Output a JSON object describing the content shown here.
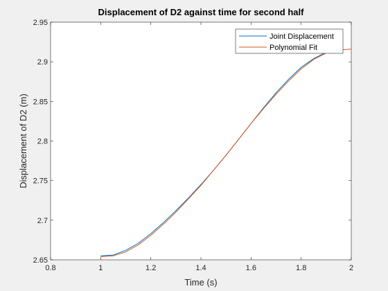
{
  "chart_data": {
    "type": "line",
    "title": "Displacement of D2 against time for second half",
    "xlabel": "Time (s)",
    "ylabel": "Displacement of D2 (m)",
    "xlim": [
      0.8,
      2.0
    ],
    "ylim": [
      2.65,
      2.95
    ],
    "xticks": [
      0.8,
      1.0,
      1.2,
      1.4,
      1.6,
      1.8,
      2.0
    ],
    "xtick_labels": [
      "0.8",
      "1",
      "1.2",
      "1.4",
      "1.6",
      "1.8",
      "2"
    ],
    "yticks": [
      2.65,
      2.7,
      2.75,
      2.8,
      2.85,
      2.9,
      2.95
    ],
    "ytick_labels": [
      "2.65",
      "2.7",
      "2.75",
      "2.8",
      "2.85",
      "2.9",
      "2.95"
    ],
    "grid": false,
    "legend_position": "top-right",
    "series": [
      {
        "name": "Joint Displacement",
        "color": "#0072bd",
        "x": [
          1.0,
          1.05,
          1.1,
          1.15,
          1.2,
          1.25,
          1.3,
          1.35,
          1.4,
          1.45,
          1.5,
          1.55,
          1.6,
          1.65,
          1.7,
          1.75,
          1.8,
          1.85,
          1.9,
          1.95
        ],
        "y": [
          2.655,
          2.656,
          2.662,
          2.671,
          2.683,
          2.697,
          2.712,
          2.728,
          2.745,
          2.763,
          2.782,
          2.802,
          2.822,
          2.842,
          2.861,
          2.878,
          2.893,
          2.904,
          2.912,
          2.915
        ]
      },
      {
        "name": "Polynomial Fit",
        "color": "#d95319",
        "x": [
          1.0,
          1.05,
          1.1,
          1.15,
          1.2,
          1.25,
          1.3,
          1.35,
          1.4,
          1.45,
          1.5,
          1.55,
          1.6,
          1.65,
          1.7,
          1.75,
          1.8,
          1.85,
          1.9,
          1.95,
          2.0
        ],
        "y": [
          2.654,
          2.655,
          2.66,
          2.669,
          2.681,
          2.695,
          2.71,
          2.727,
          2.744,
          2.763,
          2.782,
          2.802,
          2.822,
          2.841,
          2.859,
          2.876,
          2.891,
          2.903,
          2.911,
          2.915,
          2.916
        ]
      }
    ]
  }
}
